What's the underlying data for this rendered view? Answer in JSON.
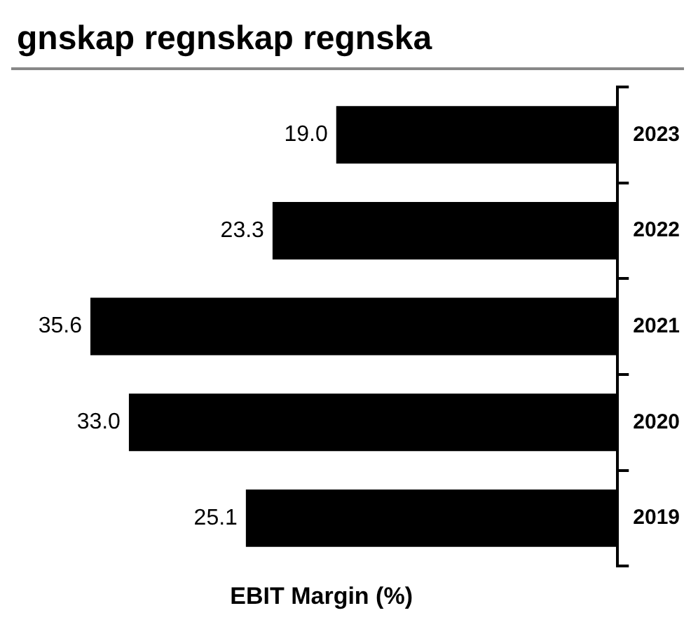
{
  "chart_data": {
    "type": "bar",
    "orientation": "horizontal",
    "title": "gnskap regnskap regnska",
    "xlabel": "EBIT Margin (%)",
    "categories": [
      "2023",
      "2022",
      "2021",
      "2020",
      "2019"
    ],
    "values": [
      19.0,
      23.3,
      35.6,
      33.0,
      25.1
    ],
    "value_labels": [
      "19.0",
      "23.3",
      "35.6",
      "33.0",
      "25.1"
    ],
    "color": "#000000",
    "legend": false,
    "grid": false
  }
}
